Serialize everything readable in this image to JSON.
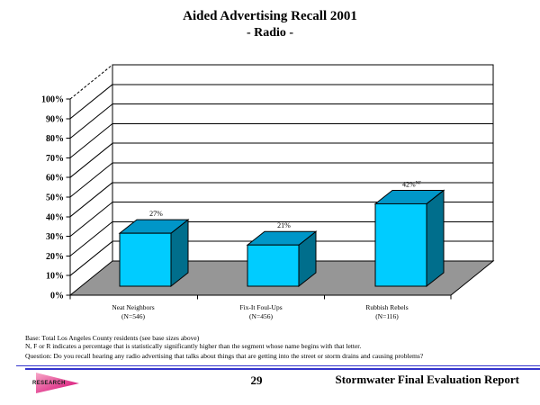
{
  "slide": {
    "background": "#FFFFFF"
  },
  "title": {
    "line1": "Aided Advertising Recall 2001",
    "line2": "- Radio -"
  },
  "chart_data": {
    "type": "bar",
    "style": "3d-column",
    "title": "",
    "xlabel": "",
    "ylabel": "",
    "categories": [
      "Neat Neighbors",
      "Fix-It Foul-Ups",
      "Rubbish Rebels"
    ],
    "category_base_sizes": [
      "(N=546)",
      "(N=456)",
      "(N=116)"
    ],
    "values": [
      27,
      21,
      42
    ],
    "value_labels": [
      "27%",
      "21%",
      "42%"
    ],
    "value_superscripts": [
      "",
      "",
      "NF"
    ],
    "ylim": [
      0,
      100
    ],
    "ytick_step": 10,
    "ytick_labels": [
      "0%",
      "10%",
      "20%",
      "30%",
      "40%",
      "50%",
      "60%",
      "70%",
      "80%",
      "90%",
      "100%"
    ],
    "grid": "horizontal",
    "legend": "none",
    "colors": {
      "bar_front": "#00CCFF",
      "bar_top": "#0096C8",
      "bar_side": "#006E8C",
      "floor": "#969696",
      "wall": "#FFFFFF",
      "outline": "#000000"
    }
  },
  "footnotes": {
    "base_line": "Base:  Total Los Angeles County residents (see base sizes above)",
    "significance_line": "N, F or R indicates a percentage that is statistically significantly higher than the segment whose name begins with that letter.",
    "question_line": "Question:  Do you recall hearing any radio advertising that talks about things that are getting into the street or storm drains and causing problems?"
  },
  "footer": {
    "page_number": "29",
    "report_title": "Stormwater Final Evaluation Report",
    "logo_text": "RESEARCH",
    "rule_color": "#3333CC"
  }
}
